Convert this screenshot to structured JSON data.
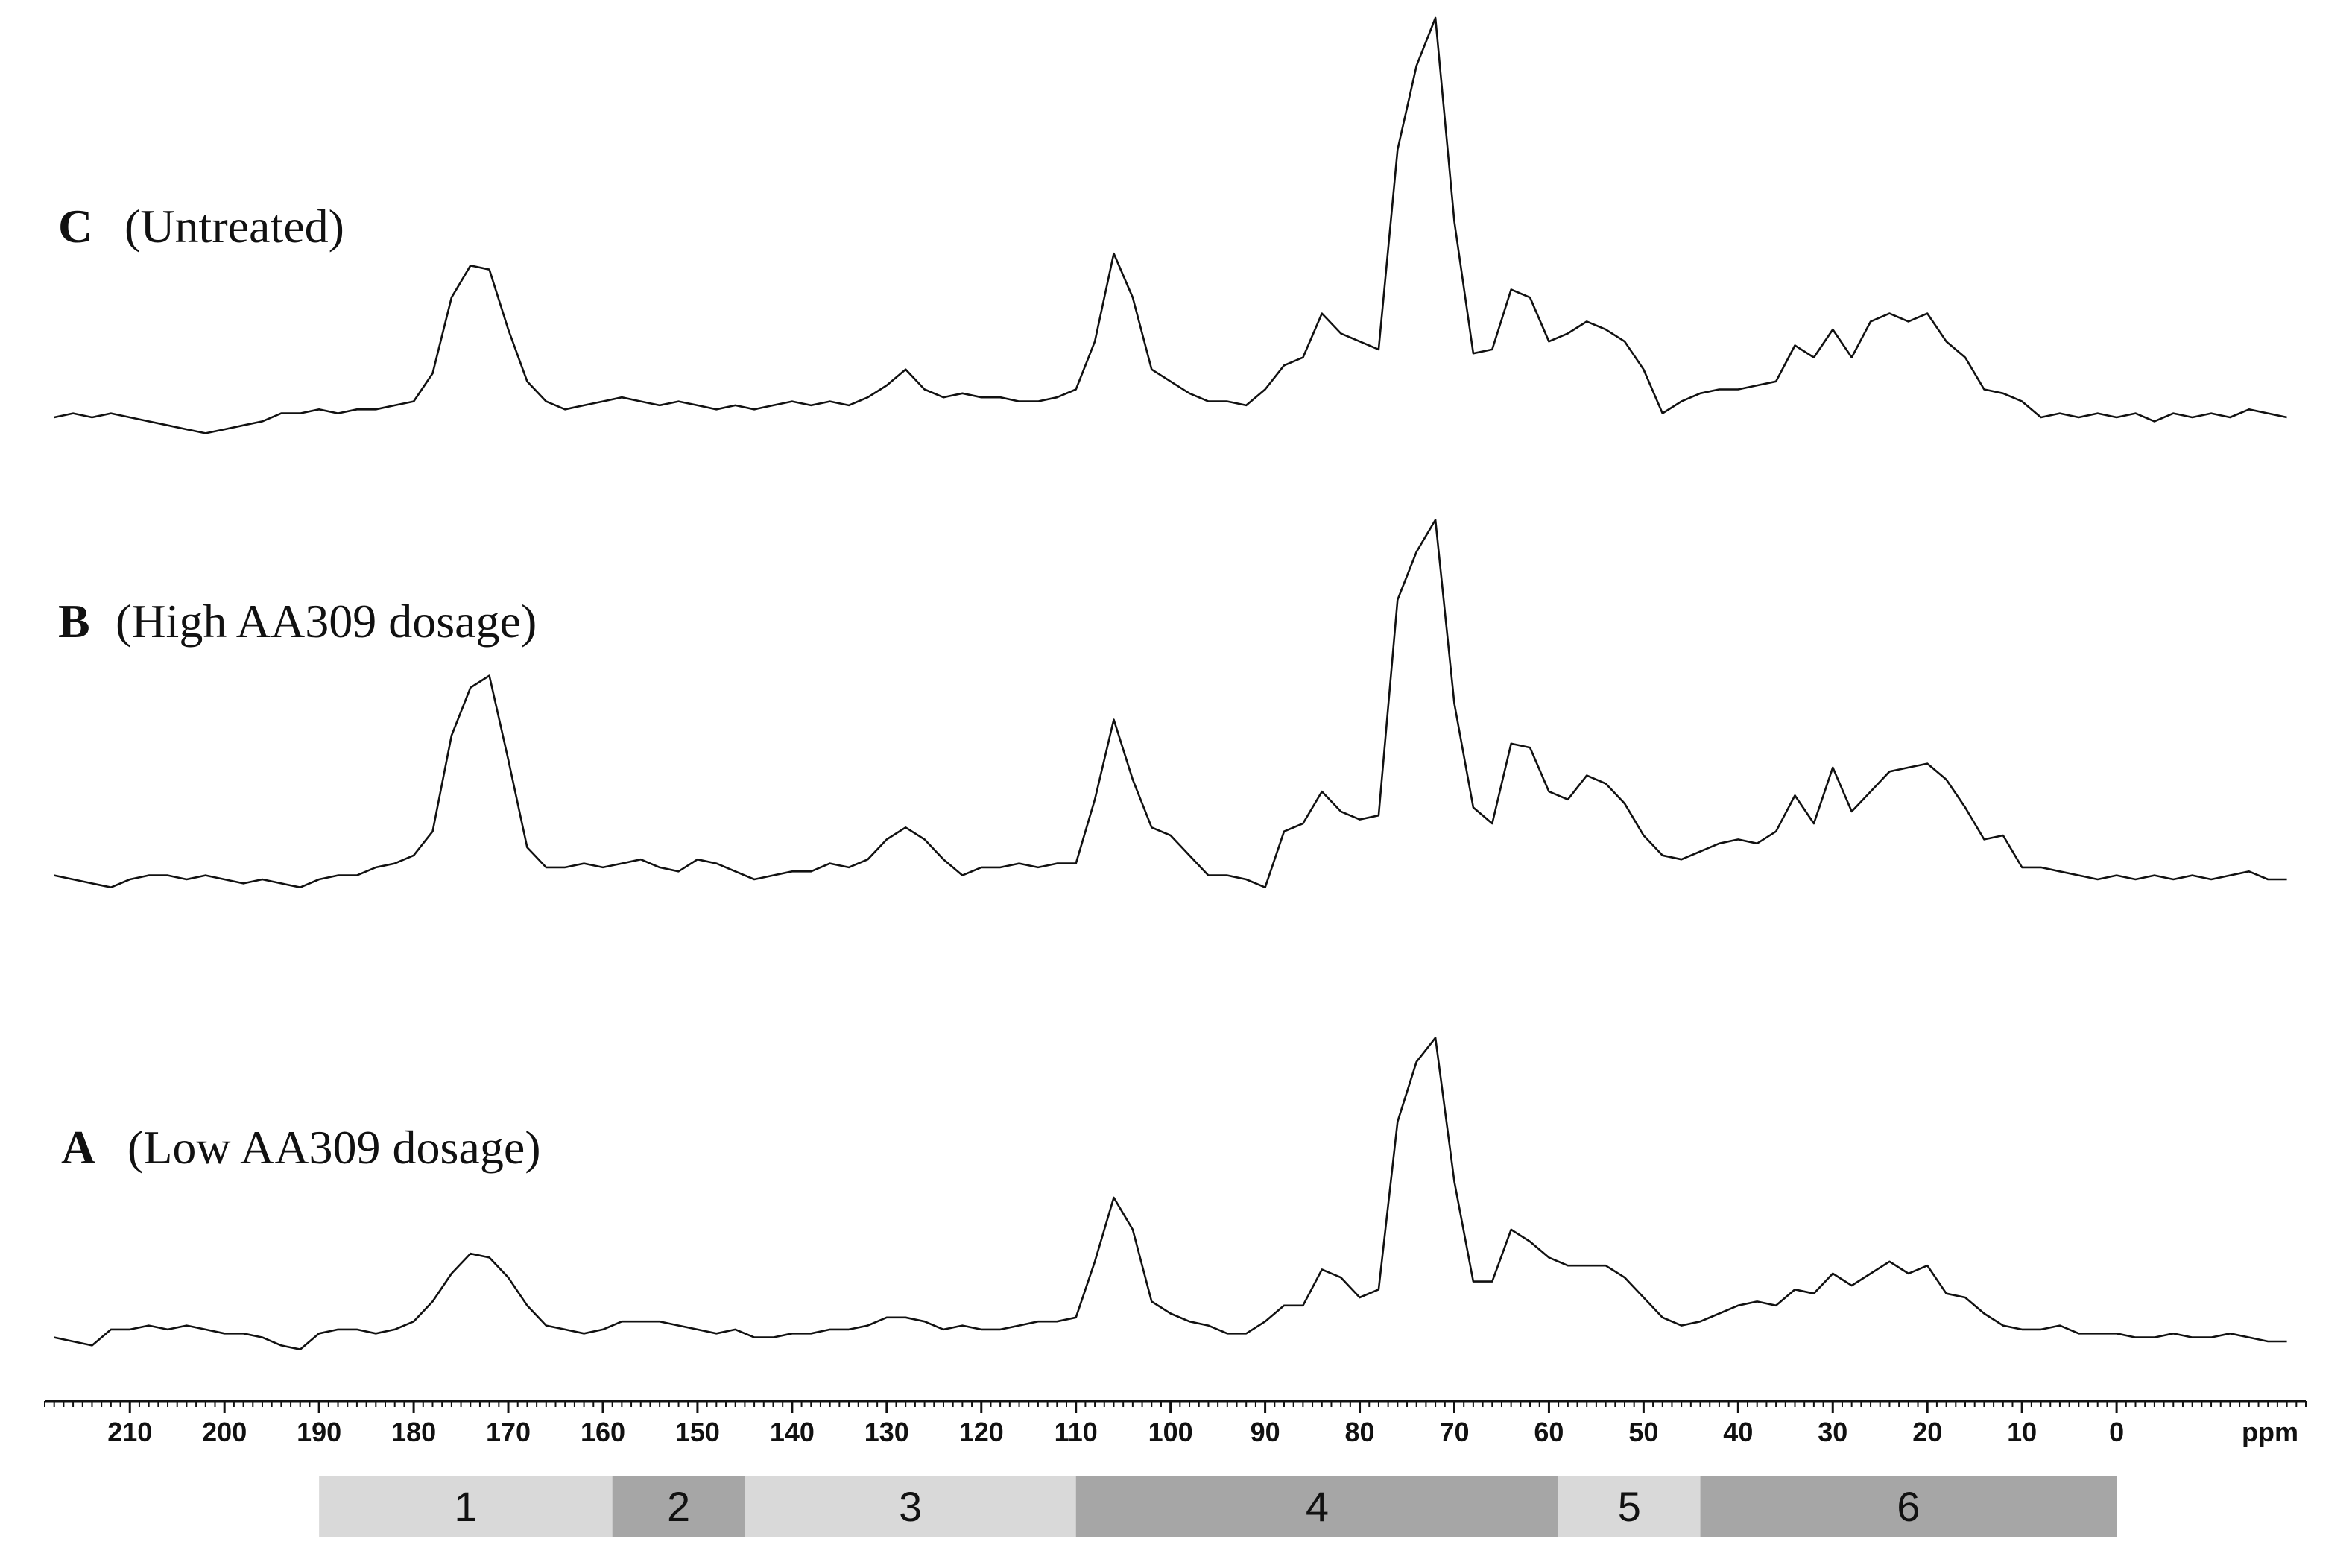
{
  "chart_data": {
    "type": "line",
    "x_label": "ppm",
    "xlim": [
      219,
      -20
    ],
    "xticks": [
      210,
      200,
      190,
      180,
      170,
      160,
      150,
      140,
      130,
      120,
      110,
      100,
      90,
      80,
      70,
      60,
      50,
      40,
      30,
      20,
      10,
      0
    ],
    "x": [
      218,
      216,
      214,
      212,
      210,
      208,
      206,
      204,
      202,
      200,
      198,
      196,
      194,
      192,
      190,
      188,
      186,
      184,
      182,
      180,
      178,
      176,
      174,
      172,
      170,
      168,
      166,
      164,
      162,
      160,
      158,
      156,
      154,
      152,
      150,
      148,
      146,
      144,
      142,
      140,
      138,
      136,
      134,
      132,
      130,
      128,
      126,
      124,
      122,
      120,
      118,
      116,
      114,
      112,
      110,
      108,
      106,
      104,
      102,
      100,
      98,
      96,
      94,
      92,
      90,
      88,
      86,
      84,
      82,
      80,
      78,
      76,
      74,
      72,
      70,
      68,
      66,
      64,
      62,
      60,
      58,
      56,
      54,
      52,
      50,
      48,
      46,
      44,
      42,
      40,
      38,
      36,
      34,
      32,
      30,
      28,
      26,
      24,
      22,
      20,
      18,
      16,
      14,
      12,
      10,
      8,
      6,
      4,
      2,
      0,
      -2,
      -4,
      -6,
      -8,
      -10,
      -12,
      -14,
      -16,
      -18
    ],
    "series": [
      {
        "letter": "C",
        "name": "(Untreated)",
        "color": "#111111",
        "values": [
          0,
          1,
          0,
          1,
          0,
          -1,
          -2,
          -3,
          -4,
          -3,
          -2,
          -1,
          1,
          1,
          2,
          1,
          2,
          2,
          3,
          4,
          11,
          30,
          38,
          37,
          22,
          9,
          4,
          2,
          3,
          4,
          5,
          4,
          3,
          4,
          3,
          2,
          3,
          2,
          3,
          4,
          3,
          4,
          3,
          5,
          8,
          12,
          7,
          5,
          6,
          5,
          5,
          4,
          4,
          5,
          7,
          19,
          41,
          30,
          12,
          9,
          6,
          4,
          4,
          3,
          7,
          13,
          15,
          26,
          21,
          19,
          17,
          67,
          88,
          100,
          49,
          16,
          17,
          32,
          30,
          19,
          21,
          24,
          22,
          19,
          12,
          1,
          4,
          6,
          7,
          7,
          8,
          9,
          18,
          15,
          22,
          15,
          24,
          26,
          24,
          26,
          19,
          15,
          7,
          6,
          4,
          0,
          1,
          0,
          1,
          0,
          1,
          -1,
          1,
          0,
          1,
          0,
          2,
          1,
          0
        ]
      },
      {
        "letter": "B",
        "name": "(High AA309 dosage)",
        "color": "#111111",
        "values": [
          1,
          0,
          -1,
          -2,
          0,
          1,
          1,
          0,
          1,
          0,
          -1,
          0,
          -1,
          -2,
          0,
          1,
          1,
          3,
          4,
          6,
          12,
          36,
          48,
          51,
          30,
          8,
          3,
          3,
          4,
          3,
          4,
          5,
          3,
          2,
          5,
          4,
          2,
          0,
          1,
          2,
          2,
          4,
          3,
          5,
          10,
          13,
          10,
          5,
          1,
          3,
          3,
          4,
          3,
          4,
          4,
          20,
          40,
          25,
          13,
          11,
          6,
          1,
          1,
          0,
          -2,
          12,
          14,
          22,
          17,
          15,
          16,
          70,
          82,
          90,
          44,
          18,
          14,
          34,
          33,
          22,
          20,
          26,
          24,
          19,
          11,
          6,
          5,
          7,
          9,
          10,
          9,
          12,
          21,
          14,
          28,
          17,
          22,
          27,
          28,
          29,
          25,
          18,
          10,
          11,
          3,
          3,
          2,
          1,
          0,
          1,
          0,
          1,
          0,
          1,
          0,
          1,
          2,
          0,
          0
        ]
      },
      {
        "letter": "A",
        "name": "(Low AA309 dosage)",
        "color": "#111111",
        "values": [
          1,
          0,
          -1,
          3,
          3,
          4,
          3,
          4,
          3,
          2,
          2,
          1,
          -1,
          -2,
          2,
          3,
          3,
          2,
          3,
          5,
          10,
          17,
          22,
          21,
          16,
          9,
          4,
          3,
          2,
          3,
          5,
          5,
          5,
          4,
          3,
          2,
          3,
          1,
          1,
          2,
          2,
          3,
          3,
          4,
          6,
          6,
          5,
          3,
          4,
          3,
          3,
          4,
          5,
          5,
          6,
          20,
          36,
          28,
          10,
          7,
          5,
          4,
          2,
          2,
          5,
          9,
          9,
          18,
          16,
          11,
          13,
          55,
          70,
          76,
          40,
          15,
          15,
          28,
          25,
          21,
          19,
          19,
          19,
          16,
          11,
          6,
          4,
          5,
          7,
          9,
          10,
          9,
          13,
          12,
          17,
          14,
          17,
          20,
          17,
          19,
          12,
          11,
          7,
          4,
          3,
          3,
          4,
          2,
          2,
          2,
          1,
          1,
          2,
          1,
          1,
          2,
          1,
          0,
          0
        ]
      }
    ],
    "regions": [
      {
        "label": "1",
        "from": 190,
        "to": 159,
        "color": "#d9d9d9"
      },
      {
        "label": "2",
        "from": 159,
        "to": 145,
        "color": "#a6a6a6"
      },
      {
        "label": "3",
        "from": 145,
        "to": 110,
        "color": "#d9d9d9"
      },
      {
        "label": "4",
        "from": 110,
        "to": 59,
        "color": "#a6a6a6"
      },
      {
        "label": "5",
        "from": 59,
        "to": 44,
        "color": "#d9d9d9"
      },
      {
        "label": "6",
        "from": 44,
        "to": 0,
        "color": "#a6a6a6"
      }
    ]
  }
}
